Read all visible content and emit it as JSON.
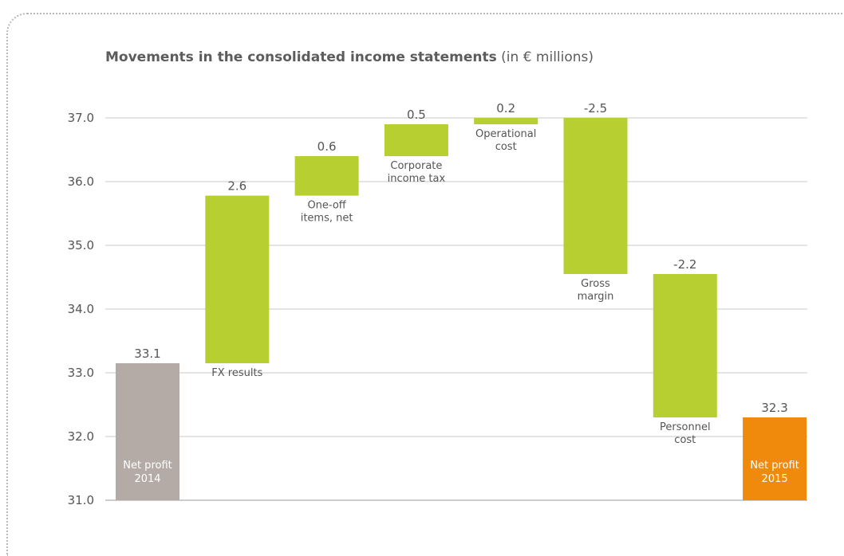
{
  "title_bold": "Movements in the consolidated income statements",
  "title_unit": "(in € millions)",
  "chart_data": {
    "type": "bar",
    "subtype": "waterfall",
    "ylim": [
      31.0,
      37.0
    ],
    "y_ticks": [
      "31.0",
      "32.0",
      "33.0",
      "34.0",
      "35.0",
      "36.0",
      "37.0"
    ],
    "grid": true,
    "colors": {
      "start": "#b5aba6",
      "change": "#b8cf32",
      "end": "#ef8a0d"
    },
    "bars": [
      {
        "label_lines": [
          "Net profit",
          "2014"
        ],
        "value_label": "33.1",
        "kind": "start",
        "from": 31.0,
        "to": 33.15,
        "label_pos": "inside"
      },
      {
        "label_lines": [
          "FX results"
        ],
        "value_label": "2.6",
        "kind": "change",
        "from": 33.15,
        "to": 35.78,
        "label_pos": "below"
      },
      {
        "label_lines": [
          "One-off",
          "items, net"
        ],
        "value_label": "0.6",
        "kind": "change",
        "from": 35.78,
        "to": 36.4,
        "label_pos": "below"
      },
      {
        "label_lines": [
          "Corporate",
          "income tax"
        ],
        "value_label": "0.5",
        "kind": "change",
        "from": 36.4,
        "to": 36.9,
        "label_pos": "below"
      },
      {
        "label_lines": [
          "Operational",
          "cost"
        ],
        "value_label": "0.2",
        "kind": "change",
        "from": 36.9,
        "to": 37.0,
        "label_pos": "below"
      },
      {
        "label_lines": [
          "Gross",
          "margin"
        ],
        "value_label": "-2.5",
        "kind": "change",
        "from": 37.0,
        "to": 34.55,
        "label_pos": "below"
      },
      {
        "label_lines": [
          "Personnel",
          "cost"
        ],
        "value_label": "-2.2",
        "kind": "change",
        "from": 34.55,
        "to": 32.3,
        "label_pos": "below"
      },
      {
        "label_lines": [
          "Net profit",
          "2015"
        ],
        "value_label": "32.3",
        "kind": "end",
        "from": 31.0,
        "to": 32.3,
        "label_pos": "inside"
      }
    ]
  }
}
